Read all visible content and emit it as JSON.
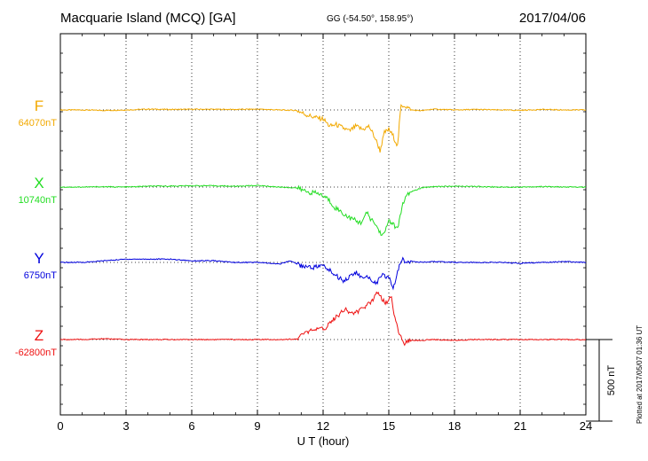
{
  "header": {
    "title": "Macquarie Island (MCQ)  [GA]",
    "coords": "GG (-54.50°, 158.95°)",
    "date": "2017/04/06"
  },
  "footer": {
    "plotted": "Plotted at 2017/05/07 01:36 UT"
  },
  "chart_data": {
    "type": "line",
    "xlabel": "U T (hour)",
    "x_ticks": [
      0,
      3,
      6,
      9,
      12,
      15,
      18,
      21,
      24
    ],
    "xlim": [
      0,
      24
    ],
    "scale_bar_label": "500 nT",
    "scale_bar_nT": 500,
    "grid": true,
    "series": [
      {
        "name": "F",
        "baseline_label": "64070nT",
        "color": "#f2a900",
        "x": [
          0,
          1,
          2,
          3,
          4,
          5,
          6,
          7,
          8,
          9,
          10,
          10.8,
          11.2,
          11.6,
          12.0,
          12.3,
          12.6,
          12.9,
          13.2,
          13.5,
          13.8,
          14.1,
          14.4,
          14.6,
          14.8,
          15.0,
          15.2,
          15.4,
          15.55,
          15.7,
          16.0,
          16.5,
          17,
          18,
          19,
          20,
          21,
          22,
          23,
          24
        ],
        "y": [
          0,
          0,
          -3,
          0,
          5,
          3,
          4,
          4,
          3,
          5,
          0,
          -3,
          -28,
          -45,
          -55,
          -100,
          -90,
          -110,
          -130,
          -100,
          -120,
          -100,
          -180,
          -250,
          -140,
          -120,
          -160,
          -220,
          20,
          30,
          0,
          -5,
          5,
          0,
          3,
          0,
          -2,
          3,
          0,
          0
        ]
      },
      {
        "name": "X",
        "baseline_label": "10740nT",
        "color": "#22dd22",
        "x": [
          0,
          1,
          2,
          3,
          4,
          5,
          6,
          7,
          8,
          9,
          10,
          10.8,
          11.3,
          11.8,
          12.2,
          12.5,
          12.8,
          13.1,
          13.4,
          13.7,
          14.0,
          14.2,
          14.4,
          14.6,
          14.8,
          15.0,
          15.2,
          15.4,
          15.6,
          15.8,
          16.0,
          16.5,
          17,
          18,
          19,
          20,
          21,
          22,
          23,
          24
        ],
        "y": [
          0,
          0,
          2,
          0,
          5,
          6,
          8,
          8,
          5,
          10,
          0,
          -5,
          -30,
          -40,
          -70,
          -120,
          -150,
          -180,
          -200,
          -220,
          -160,
          -200,
          -230,
          -280,
          -290,
          -200,
          -230,
          -260,
          -120,
          -60,
          -30,
          -5,
          3,
          5,
          3,
          0,
          0,
          3,
          0,
          0
        ]
      },
      {
        "name": "Y",
        "baseline_label": "6750nT",
        "color": "#0000dd",
        "x": [
          0,
          1,
          2,
          3,
          4,
          5,
          6,
          7,
          8,
          9,
          10,
          10.5,
          11.0,
          11.5,
          12.0,
          12.3,
          12.6,
          12.9,
          13.2,
          13.5,
          13.8,
          14.1,
          14.4,
          14.7,
          15.0,
          15.2,
          15.4,
          15.6,
          15.8,
          16.0,
          16.5,
          17,
          18,
          19,
          20,
          21,
          22,
          23,
          24
        ],
        "y": [
          0,
          0,
          10,
          20,
          20,
          20,
          10,
          10,
          0,
          0,
          -10,
          10,
          -20,
          -30,
          -20,
          -50,
          -80,
          -110,
          -90,
          -60,
          -100,
          -90,
          -130,
          -80,
          -90,
          -160,
          -60,
          20,
          0,
          10,
          0,
          5,
          0,
          0,
          0,
          -5,
          0,
          5,
          0
        ]
      },
      {
        "name": "Z",
        "baseline_label": "-62800nT",
        "color": "#ee1111",
        "x": [
          0,
          1,
          2,
          3,
          4,
          5,
          6,
          7,
          8,
          9,
          10,
          10.8,
          11.3,
          11.8,
          12.1,
          12.4,
          12.7,
          13.0,
          13.3,
          13.6,
          13.9,
          14.2,
          14.5,
          14.7,
          14.9,
          15.1,
          15.3,
          15.5,
          15.7,
          15.9,
          16.1,
          16.5,
          17,
          18,
          19,
          20,
          21,
          22,
          23,
          24
        ],
        "y": [
          0,
          0,
          5,
          0,
          0,
          0,
          0,
          0,
          0,
          0,
          0,
          3,
          50,
          60,
          70,
          120,
          150,
          190,
          160,
          170,
          200,
          230,
          300,
          250,
          220,
          270,
          120,
          30,
          -30,
          -10,
          -5,
          -5,
          0,
          -5,
          0,
          0,
          0,
          0,
          0,
          0
        ]
      }
    ]
  }
}
